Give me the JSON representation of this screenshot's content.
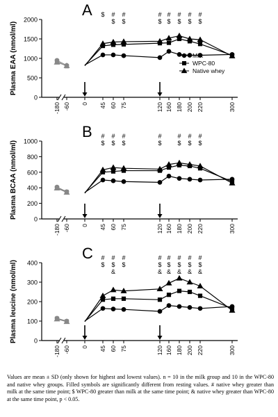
{
  "caption": "Values are mean ± SD (only shown for highest and lowest values). n = 10 in the milk group and 10 in the WPC-80 and native whey groups. Filled symbols are significantly different from resting values. # native whey greater than milk at the same time point; $ WPC-80 greater than milk at the same time point; & native whey greater than WPC-80 at the same time point, p < 0.05.",
  "colors": {
    "axis": "#000000",
    "resting_marker": "#888888",
    "line": "#000000"
  },
  "legend_placement": "inside-right (panel A)",
  "chart_data": [
    {
      "type": "line",
      "panel_label": "A",
      "ylabel": "Plasma EAA (nmol/ml)",
      "xlabel": "",
      "ylim": [
        0,
        2000
      ],
      "yticks": [
        0,
        500,
        1000,
        1500,
        2000
      ],
      "x": [
        -180,
        -60,
        0,
        45,
        60,
        75,
        120,
        160,
        180,
        200,
        220,
        300
      ],
      "xtick_labels": [
        "-180",
        "-60",
        "0",
        "45",
        "60",
        "75",
        "120",
        "160",
        "180",
        "200",
        "220",
        "300"
      ],
      "arrows_at_x": [
        0,
        120
      ],
      "grid": false,
      "series": [
        {
          "name": "Milk",
          "marker": "circle",
          "values": [
            950,
            820,
            830,
            1090,
            1090,
            1070,
            1020,
            1180,
            1100,
            1080,
            1080,
            1100
          ]
        },
        {
          "name": "WPC-80",
          "marker": "square",
          "values": [
            920,
            800,
            820,
            1320,
            1350,
            1360,
            1390,
            1400,
            1500,
            1440,
            1370,
            1080
          ]
        },
        {
          "name": "Native whey",
          "marker": "triangle",
          "values": [
            900,
            810,
            810,
            1380,
            1420,
            1430,
            1440,
            1520,
            1580,
            1500,
            1480,
            1060
          ]
        }
      ],
      "significance": [
        {
          "x": 45,
          "symbols": [
            "$"
          ]
        },
        {
          "x": 60,
          "symbols": [
            "#",
            "$"
          ]
        },
        {
          "x": 75,
          "symbols": [
            "#",
            "$"
          ]
        },
        {
          "x": 120,
          "symbols": [
            "#",
            "$"
          ]
        },
        {
          "x": 160,
          "symbols": [
            "#",
            "$"
          ]
        },
        {
          "x": 180,
          "symbols": [
            "#",
            "$"
          ]
        },
        {
          "x": 200,
          "symbols": [
            "#",
            "$"
          ]
        },
        {
          "x": 220,
          "symbols": [
            "#",
            "$"
          ]
        }
      ]
    },
    {
      "type": "line",
      "panel_label": "B",
      "ylabel": "Plasma BCAA (nmol/ml)",
      "xlabel": "",
      "ylim": [
        0,
        1000
      ],
      "yticks": [
        0,
        200,
        400,
        600,
        800,
        1000
      ],
      "x": [
        -180,
        -60,
        0,
        45,
        60,
        75,
        120,
        160,
        180,
        200,
        220,
        300
      ],
      "xtick_labels": [
        "-180",
        "-60",
        "0",
        "45",
        "60",
        "75",
        "120",
        "160",
        "180",
        "200",
        "220",
        "300"
      ],
      "arrows_at_x": [
        0,
        120
      ],
      "grid": false,
      "series": [
        {
          "name": "Milk",
          "marker": "circle",
          "values": [
            410,
            350,
            340,
            500,
            490,
            480,
            470,
            550,
            520,
            510,
            500,
            510
          ]
        },
        {
          "name": "WPC-80",
          "marker": "square",
          "values": [
            400,
            345,
            335,
            600,
            610,
            620,
            620,
            660,
            690,
            680,
            650,
            480
          ]
        },
        {
          "name": "Native whey",
          "marker": "triangle",
          "values": [
            395,
            340,
            330,
            630,
            660,
            650,
            640,
            700,
            720,
            700,
            680,
            460
          ]
        }
      ],
      "significance": [
        {
          "x": 45,
          "symbols": [
            "#",
            "$"
          ]
        },
        {
          "x": 60,
          "symbols": [
            "#",
            "$"
          ]
        },
        {
          "x": 75,
          "symbols": [
            "#",
            "$"
          ]
        },
        {
          "x": 120,
          "symbols": [
            "#",
            "$"
          ]
        },
        {
          "x": 180,
          "symbols": [
            "#",
            "$"
          ]
        },
        {
          "x": 200,
          "symbols": [
            "#",
            "$"
          ]
        },
        {
          "x": 220,
          "symbols": [
            "#",
            "$"
          ]
        }
      ]
    },
    {
      "type": "line",
      "panel_label": "C",
      "ylabel": "Plasma leucine (nmol/ml)",
      "xlabel": "",
      "ylim": [
        0,
        400
      ],
      "yticks": [
        0,
        100,
        200,
        300,
        400
      ],
      "x": [
        -180,
        -60,
        0,
        45,
        60,
        75,
        120,
        160,
        180,
        200,
        220,
        300
      ],
      "xtick_labels": [
        "-180",
        "-60",
        "0",
        "45",
        "60",
        "75",
        "120",
        "160",
        "180",
        "200",
        "220",
        "300"
      ],
      "arrows_at_x": [
        0,
        120
      ],
      "grid": false,
      "series": [
        {
          "name": "Milk",
          "marker": "circle",
          "values": [
            115,
            100,
            100,
            165,
            162,
            160,
            150,
            180,
            175,
            170,
            165,
            175
          ]
        },
        {
          "name": "WPC-80",
          "marker": "square",
          "values": [
            112,
            98,
            98,
            210,
            215,
            215,
            210,
            235,
            255,
            250,
            230,
            165
          ]
        },
        {
          "name": "Native whey",
          "marker": "triangle",
          "values": [
            110,
            97,
            97,
            230,
            260,
            255,
            265,
            295,
            320,
            300,
            280,
            155
          ]
        }
      ],
      "significance": [
        {
          "x": 45,
          "symbols": [
            "#",
            "$"
          ]
        },
        {
          "x": 60,
          "symbols": [
            "#",
            "$",
            "&"
          ]
        },
        {
          "x": 75,
          "symbols": [
            "#",
            "$"
          ]
        },
        {
          "x": 120,
          "symbols": [
            "#",
            "$",
            "&"
          ]
        },
        {
          "x": 160,
          "symbols": [
            "#",
            "$",
            "&"
          ]
        },
        {
          "x": 180,
          "symbols": [
            "#",
            "$",
            "&"
          ]
        },
        {
          "x": 200,
          "symbols": [
            "#",
            "$",
            "&"
          ]
        },
        {
          "x": 220,
          "symbols": [
            "#",
            "$",
            "&"
          ]
        }
      ]
    }
  ]
}
